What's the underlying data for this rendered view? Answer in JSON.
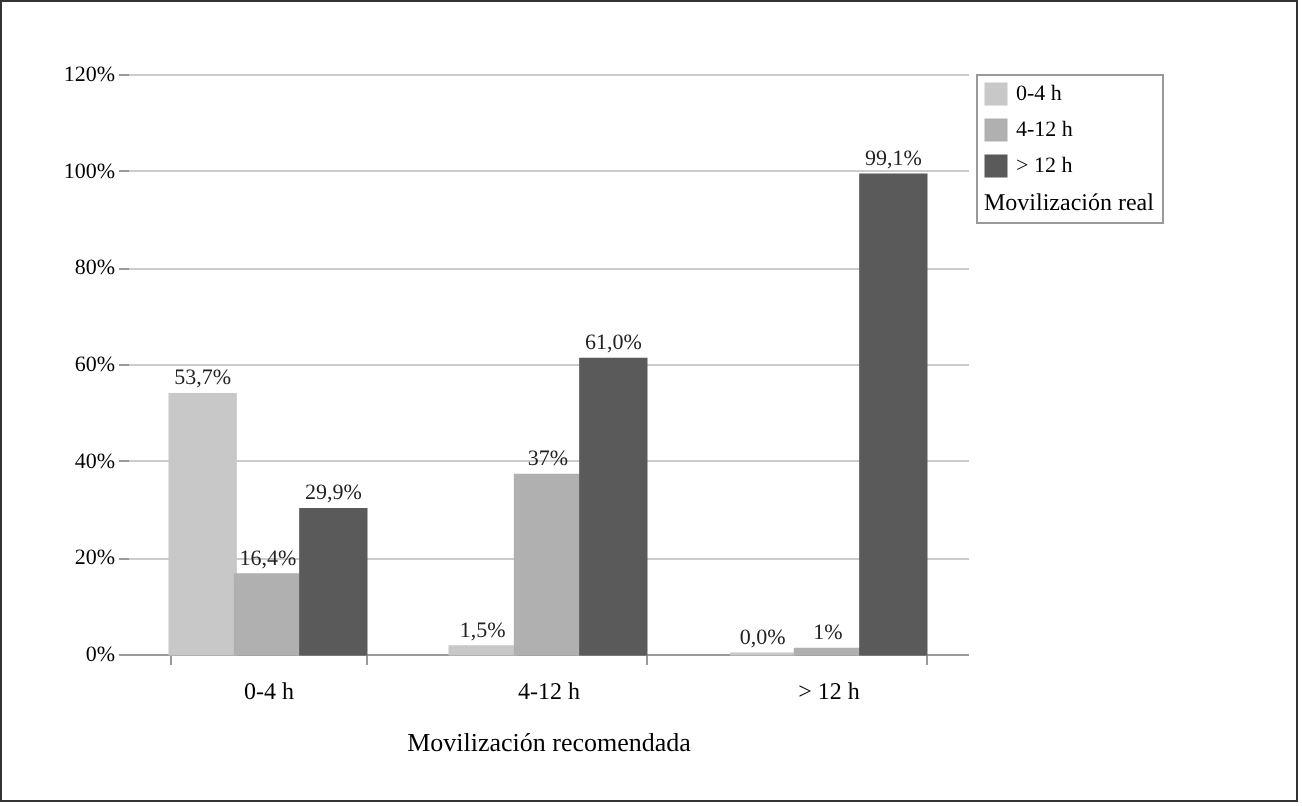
{
  "chart_data": {
    "type": "bar",
    "xlabel": "Movilización recomendada",
    "legend_title": "Movilización real",
    "legend": "right",
    "categories": [
      "0-4 h",
      "4-12 h",
      "> 12 h"
    ],
    "series": [
      {
        "name": "0-4 h",
        "color": "#c8c8c8",
        "values": [
          53.7,
          1.5,
          0.0
        ],
        "value_labels": [
          "53,7%",
          "1,5%",
          "0,0%"
        ]
      },
      {
        "name": "4-12 h",
        "color": "#b0b0b0",
        "values": [
          16.4,
          37,
          1
        ],
        "value_labels": [
          "16,4%",
          "37%",
          "1%"
        ]
      },
      {
        "name": "> 12 h",
        "color": "#5a5a5a",
        "values": [
          29.9,
          61.0,
          99.1
        ],
        "value_labels": [
          "29,9%",
          "61,0%",
          "99,1%"
        ]
      }
    ],
    "ylim": [
      0,
      120
    ],
    "yticks": [
      {
        "value": 0,
        "label": "0%"
      },
      {
        "value": 20,
        "label": "20%"
      },
      {
        "value": 40,
        "label": "40%"
      },
      {
        "value": 60,
        "label": "60%"
      },
      {
        "value": 80,
        "label": "80%"
      },
      {
        "value": 100,
        "label": "100%"
      },
      {
        "value": 120,
        "label": "120%"
      }
    ],
    "grid": "y"
  }
}
